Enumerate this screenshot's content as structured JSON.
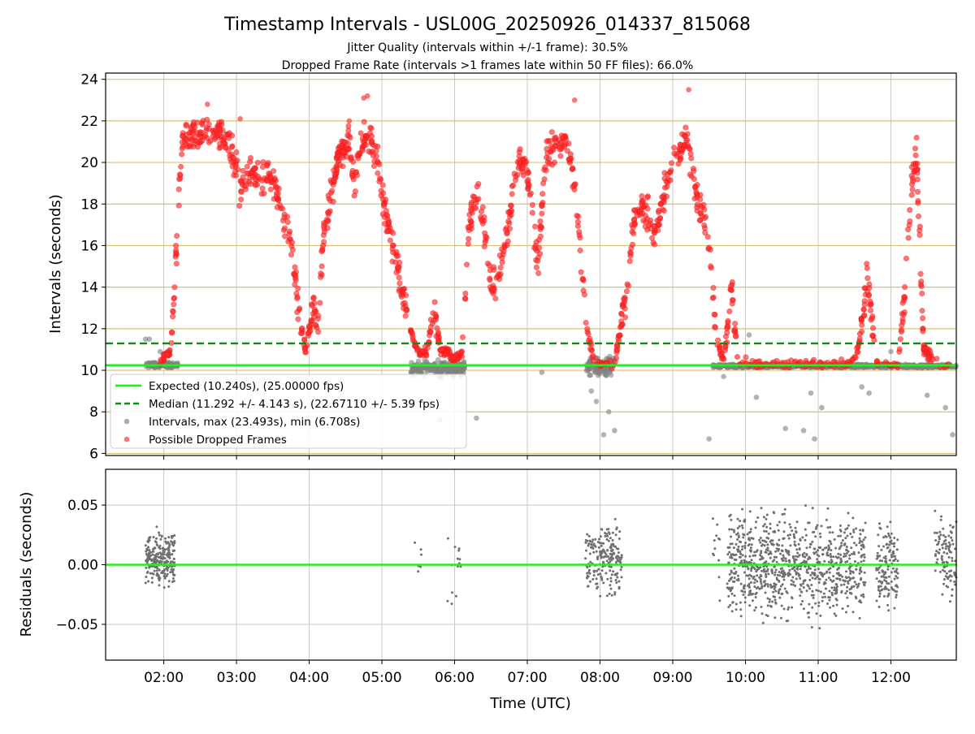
{
  "chart_data": {
    "type": "scatter",
    "title": "Timestamp Intervals - USL00G_20250926_014337_815068",
    "subtitle_1": "Jitter Quality (intervals within +/-1 frame): 30.5%",
    "subtitle_2": "Dropped Frame Rate (intervals >1 frames late within 50 FF files): 66.0%",
    "xlabel": "Time (UTC)",
    "x_range_hours": [
      1.2,
      12.9
    ],
    "x_ticks": [
      {
        "label": "02:00",
        "value": 2
      },
      {
        "label": "03:00",
        "value": 3
      },
      {
        "label": "04:00",
        "value": 4
      },
      {
        "label": "05:00",
        "value": 5
      },
      {
        "label": "06:00",
        "value": 6
      },
      {
        "label": "07:00",
        "value": 7
      },
      {
        "label": "08:00",
        "value": 8
      },
      {
        "label": "09:00",
        "value": 9
      },
      {
        "label": "10:00",
        "value": 10
      },
      {
        "label": "11:00",
        "value": 11
      },
      {
        "label": "12:00",
        "value": 12
      }
    ],
    "top_panel": {
      "ylabel": "Intervals (seconds)",
      "ylim": [
        5.9,
        24.3
      ],
      "y_ticks": [
        6,
        8,
        10,
        12,
        14,
        16,
        18,
        20,
        22,
        24
      ],
      "expected": 10.24,
      "median": 11.292,
      "legend": [
        {
          "label": "Expected (10.240s), (25.00000 fps)",
          "kind": "solid-line",
          "color": "#22ee22"
        },
        {
          "label": "Median (11.292 +/- 4.143 s), (22.67110 +/- 5.39 fps)",
          "kind": "dashed-line",
          "color": "#118811"
        },
        {
          "label": "Intervals, max (23.493s), min (6.708s)",
          "kind": "marker",
          "color": "#808080"
        },
        {
          "label": "Possible Dropped Frames",
          "kind": "marker",
          "color": "#ff2a2a"
        }
      ],
      "dropped_trend": [
        [
          1.95,
          10.4
        ],
        [
          2.1,
          11.0
        ],
        [
          2.18,
          16.0
        ],
        [
          2.25,
          20.8
        ],
        [
          2.35,
          21.4
        ],
        [
          2.5,
          21.3
        ],
        [
          2.65,
          21.6
        ],
        [
          2.8,
          21.4
        ],
        [
          2.95,
          20.5
        ],
        [
          3.05,
          18.6
        ],
        [
          3.15,
          19.6
        ],
        [
          3.3,
          19.2
        ],
        [
          3.45,
          19.5
        ],
        [
          3.6,
          18.0
        ],
        [
          3.72,
          16.8
        ],
        [
          3.8,
          14.5
        ],
        [
          3.88,
          12.3
        ],
        [
          3.95,
          11.0
        ],
        [
          4.05,
          13.2
        ],
        [
          4.12,
          12.2
        ],
        [
          4.2,
          16.5
        ],
        [
          4.3,
          18.5
        ],
        [
          4.4,
          20.3
        ],
        [
          4.55,
          21.3
        ],
        [
          4.62,
          18.6
        ],
        [
          4.7,
          20.8
        ],
        [
          4.8,
          21.2
        ],
        [
          4.95,
          20.0
        ],
        [
          5.05,
          17.5
        ],
        [
          5.15,
          16.0
        ],
        [
          5.28,
          14.0
        ],
        [
          5.38,
          12.0
        ],
        [
          5.5,
          10.8
        ],
        [
          5.62,
          10.9
        ],
        [
          5.72,
          13.0
        ],
        [
          5.8,
          11.0
        ],
        [
          5.9,
          10.8
        ],
        [
          6.0,
          10.6
        ],
        [
          6.1,
          10.8
        ],
        [
          6.2,
          17.2
        ],
        [
          6.3,
          18.7
        ],
        [
          6.4,
          17.0
        ],
        [
          6.5,
          14.0
        ],
        [
          6.62,
          14.8
        ],
        [
          6.72,
          16.5
        ],
        [
          6.85,
          19.8
        ],
        [
          6.95,
          20.3
        ],
        [
          7.05,
          18.0
        ],
        [
          7.15,
          15.0
        ],
        [
          7.25,
          20.2
        ],
        [
          7.4,
          20.8
        ],
        [
          7.5,
          21.0
        ],
        [
          7.6,
          20.3
        ],
        [
          7.72,
          16.5
        ],
        [
          7.82,
          12.0
        ],
        [
          7.92,
          10.4
        ],
        [
          8.05,
          10.3
        ],
        [
          8.2,
          10.3
        ],
        [
          8.35,
          13.5
        ],
        [
          8.45,
          17.0
        ],
        [
          8.55,
          18.0
        ],
        [
          8.65,
          17.5
        ],
        [
          8.75,
          16.5
        ],
        [
          8.9,
          18.7
        ],
        [
          9.0,
          20.0
        ],
        [
          9.1,
          20.5
        ],
        [
          9.2,
          21.3
        ],
        [
          9.3,
          18.7
        ],
        [
          9.42,
          17.2
        ],
        [
          9.5,
          16.0
        ],
        [
          9.6,
          11.5
        ],
        [
          9.7,
          10.4
        ],
        [
          9.8,
          14.0
        ],
        [
          9.9,
          10.4
        ],
        [
          10.0,
          10.3
        ],
        [
          11.4,
          10.3
        ],
        [
          11.55,
          11.0
        ],
        [
          11.68,
          14.5
        ],
        [
          11.8,
          10.4
        ],
        [
          12.0,
          10.3
        ],
        [
          12.1,
          10.3
        ],
        [
          12.2,
          14.0
        ],
        [
          12.28,
          18.5
        ],
        [
          12.35,
          21.0
        ],
        [
          12.45,
          11.0
        ],
        [
          12.6,
          10.4
        ],
        [
          12.8,
          10.3
        ]
      ],
      "gray_segments": [
        {
          "from": 1.75,
          "to": 2.2,
          "center": 10.25,
          "spread": 0.18
        },
        {
          "from": 5.4,
          "to": 6.15,
          "center": 10.1,
          "spread": 0.5
        },
        {
          "from": 7.8,
          "to": 8.2,
          "center": 10.2,
          "spread": 0.6
        },
        {
          "from": 9.55,
          "to": 12.9,
          "center": 10.2,
          "spread": 0.12
        }
      ],
      "gray_outliers": [
        [
          1.75,
          11.5
        ],
        [
          1.8,
          11.5
        ],
        [
          1.95,
          10.9
        ],
        [
          5.8,
          7.6
        ],
        [
          6.3,
          7.7
        ],
        [
          7.2,
          9.9
        ],
        [
          7.88,
          9.0
        ],
        [
          7.95,
          8.5
        ],
        [
          8.05,
          6.9
        ],
        [
          8.12,
          8.0
        ],
        [
          8.2,
          7.1
        ],
        [
          9.5,
          6.7
        ],
        [
          9.7,
          9.7
        ],
        [
          10.15,
          8.7
        ],
        [
          10.55,
          7.2
        ],
        [
          10.8,
          7.1
        ],
        [
          10.9,
          8.9
        ],
        [
          10.95,
          6.7
        ],
        [
          11.05,
          8.2
        ],
        [
          11.6,
          9.2
        ],
        [
          11.7,
          8.9
        ],
        [
          12.5,
          8.8
        ],
        [
          12.75,
          8.2
        ],
        [
          12.85,
          6.9
        ],
        [
          10.05,
          11.7
        ],
        [
          12.0,
          10.9
        ]
      ]
    },
    "bottom_panel": {
      "ylabel": "Residuals (seconds)",
      "ylim": [
        -0.08,
        0.08
      ],
      "y_ticks": [
        {
          "label": "0.05",
          "value": 0.05
        },
        {
          "label": "0.00",
          "value": 0.0
        },
        {
          "label": "−0.05",
          "value": -0.05
        }
      ],
      "zero_line_color": "#22ee22",
      "residual_clusters": [
        {
          "from": 1.75,
          "to": 2.15,
          "center": 0.005,
          "spread": 0.03,
          "count": 260
        },
        {
          "from": 5.45,
          "to": 5.55,
          "center": 0.0,
          "spread": 0.05,
          "count": 6
        },
        {
          "from": 5.9,
          "to": 6.1,
          "center": 0.0,
          "spread": 0.06,
          "count": 14
        },
        {
          "from": 7.8,
          "to": 8.3,
          "center": 0.005,
          "spread": 0.04,
          "count": 200
        },
        {
          "from": 9.55,
          "to": 9.7,
          "center": 0.0,
          "spread": 0.07,
          "count": 12
        },
        {
          "from": 9.75,
          "to": 11.65,
          "center": 0.0,
          "spread": 0.06,
          "count": 900
        },
        {
          "from": 11.8,
          "to": 12.1,
          "center": 0.0,
          "spread": 0.05,
          "count": 140
        },
        {
          "from": 12.6,
          "to": 12.9,
          "center": 0.005,
          "spread": 0.05,
          "count": 100
        }
      ]
    }
  }
}
